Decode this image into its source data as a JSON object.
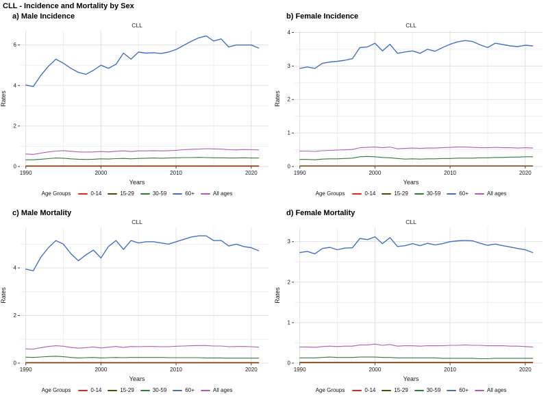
{
  "title": "CLL - Incidence and Mortality by Sex",
  "legend": {
    "title": "Age Groups",
    "items": [
      {
        "label": "0-14",
        "color": "#e0261f"
      },
      {
        "label": "15-29",
        "color": "#4d4d00"
      },
      {
        "label": "30-59",
        "color": "#2f7d33"
      },
      {
        "label": "60+",
        "color": "#4470c4"
      },
      {
        "label": "All ages",
        "color": "#b35ab3"
      }
    ]
  },
  "colors": {
    "grid_major": "#e0e0e0",
    "grid_minor": "#efefef",
    "tick": "#444444",
    "text": "#1a1a1a"
  },
  "chart_data": [
    {
      "type": "line",
      "panel_label": "a) Male Incidence",
      "subtitle": "CLL",
      "xlabel": "Years",
      "ylabel": "Rates",
      "x": [
        1990,
        1991,
        1992,
        1993,
        1994,
        1995,
        1996,
        1997,
        1998,
        1999,
        2000,
        2001,
        2002,
        2003,
        2004,
        2005,
        2006,
        2007,
        2008,
        2009,
        2010,
        2011,
        2012,
        2013,
        2014,
        2015,
        2016,
        2017,
        2018,
        2019,
        2020,
        2021
      ],
      "xlim": [
        1989.3,
        2022.3
      ],
      "ylim": [
        0,
        6.7
      ],
      "xticks": [
        1990,
        2000,
        2010,
        2020
      ],
      "xticks_minor": [
        1995,
        2005,
        2015
      ],
      "yticks": [
        0,
        2,
        4,
        6
      ],
      "yticks_minor": [
        1,
        3,
        5
      ],
      "series": [
        {
          "name": "0-14",
          "color": "#e0261f",
          "width": 1.1,
          "values": [
            0.01,
            0.01,
            0.01,
            0.01,
            0.01,
            0.01,
            0.01,
            0.01,
            0.01,
            0.01,
            0.01,
            0.01,
            0.01,
            0.01,
            0.01,
            0.01,
            0.01,
            0.01,
            0.01,
            0.01,
            0.01,
            0.01,
            0.01,
            0.01,
            0.01,
            0.01,
            0.01,
            0.01,
            0.01,
            0.01,
            0.01,
            0.01
          ]
        },
        {
          "name": "15-29",
          "color": "#4d4d00",
          "width": 1.1,
          "values": [
            0.03,
            0.03,
            0.03,
            0.03,
            0.03,
            0.03,
            0.03,
            0.03,
            0.03,
            0.03,
            0.03,
            0.03,
            0.03,
            0.03,
            0.03,
            0.03,
            0.03,
            0.03,
            0.03,
            0.03,
            0.03,
            0.03,
            0.03,
            0.03,
            0.03,
            0.03,
            0.03,
            0.03,
            0.03,
            0.03,
            0.03,
            0.03
          ]
        },
        {
          "name": "30-59",
          "color": "#2f7d33",
          "width": 1.1,
          "values": [
            0.33,
            0.33,
            0.36,
            0.39,
            0.42,
            0.41,
            0.38,
            0.36,
            0.35,
            0.36,
            0.38,
            0.37,
            0.39,
            0.4,
            0.38,
            0.4,
            0.41,
            0.42,
            0.41,
            0.42,
            0.43,
            0.44,
            0.44,
            0.45,
            0.44,
            0.43,
            0.43,
            0.42,
            0.42,
            0.43,
            0.42,
            0.42
          ]
        },
        {
          "name": "60+",
          "color": "#4470c4",
          "width": 1.4,
          "values": [
            4.02,
            3.95,
            4.5,
            4.95,
            5.3,
            5.1,
            4.85,
            4.65,
            4.55,
            4.75,
            5.0,
            4.85,
            5.05,
            5.6,
            5.3,
            5.65,
            5.6,
            5.62,
            5.58,
            5.65,
            5.78,
            5.98,
            6.18,
            6.35,
            6.45,
            6.2,
            6.3,
            5.9,
            6.0,
            6.0,
            6.0,
            5.85
          ]
        },
        {
          "name": "All ages",
          "color": "#b35ab3",
          "width": 1.1,
          "values": [
            0.62,
            0.6,
            0.66,
            0.72,
            0.76,
            0.78,
            0.75,
            0.72,
            0.71,
            0.72,
            0.74,
            0.72,
            0.75,
            0.77,
            0.74,
            0.77,
            0.77,
            0.78,
            0.77,
            0.78,
            0.8,
            0.83,
            0.85,
            0.86,
            0.88,
            0.87,
            0.86,
            0.83,
            0.82,
            0.84,
            0.83,
            0.82
          ]
        }
      ]
    },
    {
      "type": "line",
      "panel_label": "b) Female Incidence",
      "subtitle": "CLL",
      "xlabel": "Years",
      "ylabel": "Rates",
      "x": [
        1990,
        1991,
        1992,
        1993,
        1994,
        1995,
        1996,
        1997,
        1998,
        1999,
        2000,
        2001,
        2002,
        2003,
        2004,
        2005,
        2006,
        2007,
        2008,
        2009,
        2010,
        2011,
        2012,
        2013,
        2014,
        2015,
        2016,
        2017,
        2018,
        2019,
        2020,
        2021
      ],
      "xlim": [
        1989.3,
        2022.3
      ],
      "ylim": [
        0,
        4.05
      ],
      "xticks": [
        1990,
        2000,
        2010,
        2020
      ],
      "xticks_minor": [
        1995,
        2005,
        2015
      ],
      "yticks": [
        0,
        1,
        2,
        3,
        4
      ],
      "yticks_minor": [
        0.5,
        1.5,
        2.5,
        3.5
      ],
      "series": [
        {
          "name": "0-14",
          "color": "#e0261f",
          "width": 1.1,
          "values": [
            0.01,
            0.01,
            0.01,
            0.01,
            0.01,
            0.01,
            0.01,
            0.01,
            0.01,
            0.01,
            0.01,
            0.01,
            0.01,
            0.01,
            0.01,
            0.01,
            0.01,
            0.01,
            0.01,
            0.01,
            0.01,
            0.01,
            0.01,
            0.01,
            0.01,
            0.01,
            0.01,
            0.01,
            0.01,
            0.01,
            0.01,
            0.01
          ]
        },
        {
          "name": "15-29",
          "color": "#4d4d00",
          "width": 1.1,
          "values": [
            0.02,
            0.02,
            0.02,
            0.02,
            0.02,
            0.02,
            0.02,
            0.02,
            0.02,
            0.02,
            0.02,
            0.02,
            0.02,
            0.02,
            0.02,
            0.02,
            0.02,
            0.02,
            0.02,
            0.02,
            0.02,
            0.02,
            0.02,
            0.02,
            0.02,
            0.02,
            0.02,
            0.02,
            0.02,
            0.02,
            0.02,
            0.02
          ]
        },
        {
          "name": "30-59",
          "color": "#2f7d33",
          "width": 1.1,
          "values": [
            0.21,
            0.21,
            0.2,
            0.22,
            0.23,
            0.23,
            0.24,
            0.25,
            0.29,
            0.3,
            0.29,
            0.27,
            0.26,
            0.24,
            0.22,
            0.23,
            0.22,
            0.23,
            0.23,
            0.24,
            0.24,
            0.25,
            0.25,
            0.25,
            0.26,
            0.26,
            0.27,
            0.27,
            0.28,
            0.28,
            0.29,
            0.29
          ]
        },
        {
          "name": "60+",
          "color": "#4470c4",
          "width": 1.4,
          "values": [
            2.93,
            2.97,
            2.93,
            3.08,
            3.12,
            3.14,
            3.17,
            3.22,
            3.55,
            3.57,
            3.68,
            3.45,
            3.65,
            3.38,
            3.42,
            3.45,
            3.38,
            3.5,
            3.44,
            3.55,
            3.65,
            3.72,
            3.76,
            3.73,
            3.63,
            3.55,
            3.68,
            3.64,
            3.6,
            3.58,
            3.62,
            3.6
          ]
        },
        {
          "name": "All ages",
          "color": "#b35ab3",
          "width": 1.1,
          "values": [
            0.46,
            0.46,
            0.45,
            0.47,
            0.48,
            0.49,
            0.5,
            0.51,
            0.56,
            0.57,
            0.58,
            0.56,
            0.58,
            0.53,
            0.54,
            0.55,
            0.54,
            0.55,
            0.55,
            0.56,
            0.57,
            0.58,
            0.58,
            0.57,
            0.56,
            0.56,
            0.57,
            0.56,
            0.56,
            0.55,
            0.56,
            0.55
          ]
        }
      ]
    },
    {
      "type": "line",
      "panel_label": "c) Male Mortality",
      "subtitle": "CLL",
      "xlabel": "Years",
      "ylabel": "Rates",
      "x": [
        1990,
        1991,
        1992,
        1993,
        1994,
        1995,
        1996,
        1997,
        1998,
        1999,
        2000,
        2001,
        2002,
        2003,
        2004,
        2005,
        2006,
        2007,
        2008,
        2009,
        2010,
        2011,
        2012,
        2013,
        2014,
        2015,
        2016,
        2017,
        2018,
        2019,
        2020,
        2021
      ],
      "xlim": [
        1989.3,
        2022.3
      ],
      "ylim": [
        0,
        5.7
      ],
      "xticks": [
        1990,
        2000,
        2010,
        2020
      ],
      "xticks_minor": [
        1995,
        2005,
        2015
      ],
      "yticks": [
        0,
        2,
        4
      ],
      "yticks_minor": [
        1,
        3,
        5
      ],
      "series": [
        {
          "name": "0-14",
          "color": "#e0261f",
          "width": 1.1,
          "values": [
            0.01,
            0.01,
            0.01,
            0.01,
            0.01,
            0.01,
            0.01,
            0.01,
            0.01,
            0.01,
            0.01,
            0.01,
            0.01,
            0.01,
            0.01,
            0.01,
            0.01,
            0.01,
            0.01,
            0.01,
            0.01,
            0.01,
            0.01,
            0.01,
            0.01,
            0.01,
            0.01,
            0.01,
            0.01,
            0.01,
            0.01,
            0.01
          ]
        },
        {
          "name": "15-29",
          "color": "#4d4d00",
          "width": 1.1,
          "values": [
            0.03,
            0.03,
            0.03,
            0.03,
            0.03,
            0.03,
            0.03,
            0.03,
            0.03,
            0.03,
            0.03,
            0.03,
            0.03,
            0.03,
            0.03,
            0.03,
            0.03,
            0.03,
            0.03,
            0.03,
            0.03,
            0.03,
            0.03,
            0.03,
            0.03,
            0.03,
            0.03,
            0.03,
            0.03,
            0.03,
            0.03,
            0.03
          ]
        },
        {
          "name": "30-59",
          "color": "#2f7d33",
          "width": 1.1,
          "values": [
            0.25,
            0.24,
            0.26,
            0.28,
            0.29,
            0.27,
            0.24,
            0.22,
            0.23,
            0.24,
            0.22,
            0.23,
            0.24,
            0.23,
            0.24,
            0.24,
            0.24,
            0.24,
            0.24,
            0.23,
            0.23,
            0.23,
            0.23,
            0.23,
            0.22,
            0.22,
            0.22,
            0.21,
            0.21,
            0.21,
            0.21,
            0.21
          ]
        },
        {
          "name": "60+",
          "color": "#4470c4",
          "width": 1.4,
          "values": [
            3.95,
            3.88,
            4.45,
            4.85,
            5.15,
            5.0,
            4.6,
            4.3,
            4.55,
            4.75,
            4.42,
            4.9,
            5.15,
            4.78,
            5.15,
            5.05,
            5.1,
            5.1,
            5.05,
            5.0,
            5.1,
            5.2,
            5.3,
            5.35,
            5.35,
            5.15,
            5.15,
            4.92,
            5.0,
            4.9,
            4.85,
            4.72
          ]
        },
        {
          "name": "All ages",
          "color": "#b35ab3",
          "width": 1.1,
          "values": [
            0.6,
            0.59,
            0.65,
            0.7,
            0.73,
            0.71,
            0.66,
            0.63,
            0.65,
            0.68,
            0.64,
            0.67,
            0.7,
            0.66,
            0.7,
            0.69,
            0.7,
            0.7,
            0.69,
            0.69,
            0.71,
            0.72,
            0.73,
            0.74,
            0.74,
            0.72,
            0.72,
            0.69,
            0.7,
            0.7,
            0.69,
            0.67
          ]
        }
      ]
    },
    {
      "type": "line",
      "panel_label": "d) Female Mortality",
      "subtitle": "CLL",
      "xlabel": "Years",
      "ylabel": "Rates",
      "x": [
        1990,
        1991,
        1992,
        1993,
        1994,
        1995,
        1996,
        1997,
        1998,
        1999,
        2000,
        2001,
        2002,
        2003,
        2004,
        2005,
        2006,
        2007,
        2008,
        2009,
        2010,
        2011,
        2012,
        2013,
        2014,
        2015,
        2016,
        2017,
        2018,
        2019,
        2020,
        2021
      ],
      "xlim": [
        1989.3,
        2022.3
      ],
      "ylim": [
        0,
        3.35
      ],
      "xticks": [
        1990,
        2000,
        2010,
        2020
      ],
      "xticks_minor": [
        1995,
        2005,
        2015
      ],
      "yticks": [
        0,
        1,
        2,
        3
      ],
      "yticks_minor": [
        0.5,
        1.5,
        2.5
      ],
      "series": [
        {
          "name": "0-14",
          "color": "#e0261f",
          "width": 1.1,
          "values": [
            0.01,
            0.01,
            0.01,
            0.01,
            0.01,
            0.01,
            0.01,
            0.01,
            0.01,
            0.01,
            0.01,
            0.01,
            0.01,
            0.01,
            0.01,
            0.01,
            0.01,
            0.01,
            0.01,
            0.01,
            0.01,
            0.01,
            0.01,
            0.01,
            0.01,
            0.01,
            0.01,
            0.01,
            0.01,
            0.01,
            0.01,
            0.01
          ]
        },
        {
          "name": "15-29",
          "color": "#4d4d00",
          "width": 1.1,
          "values": [
            0.02,
            0.02,
            0.02,
            0.02,
            0.02,
            0.02,
            0.02,
            0.02,
            0.02,
            0.02,
            0.02,
            0.02,
            0.02,
            0.02,
            0.02,
            0.02,
            0.02,
            0.02,
            0.02,
            0.02,
            0.02,
            0.02,
            0.02,
            0.02,
            0.02,
            0.02,
            0.02,
            0.02,
            0.02,
            0.02,
            0.02,
            0.02
          ]
        },
        {
          "name": "30-59",
          "color": "#2f7d33",
          "width": 1.1,
          "values": [
            0.13,
            0.13,
            0.13,
            0.14,
            0.15,
            0.14,
            0.14,
            0.14,
            0.15,
            0.15,
            0.15,
            0.14,
            0.14,
            0.13,
            0.13,
            0.13,
            0.13,
            0.13,
            0.13,
            0.12,
            0.12,
            0.12,
            0.12,
            0.12,
            0.11,
            0.11,
            0.12,
            0.12,
            0.12,
            0.12,
            0.12,
            0.12
          ]
        },
        {
          "name": "60+",
          "color": "#4470c4",
          "width": 1.4,
          "values": [
            2.73,
            2.76,
            2.7,
            2.83,
            2.86,
            2.8,
            2.84,
            2.85,
            3.08,
            3.05,
            3.12,
            2.95,
            3.1,
            2.88,
            2.9,
            2.95,
            2.9,
            2.96,
            2.92,
            2.95,
            3.0,
            3.02,
            3.03,
            3.02,
            2.96,
            2.91,
            2.94,
            2.9,
            2.87,
            2.83,
            2.8,
            2.73
          ]
        },
        {
          "name": "All ages",
          "color": "#b35ab3",
          "width": 1.1,
          "values": [
            0.4,
            0.4,
            0.39,
            0.41,
            0.42,
            0.41,
            0.42,
            0.42,
            0.45,
            0.45,
            0.47,
            0.44,
            0.46,
            0.42,
            0.43,
            0.43,
            0.42,
            0.43,
            0.43,
            0.43,
            0.44,
            0.44,
            0.45,
            0.44,
            0.44,
            0.43,
            0.43,
            0.43,
            0.42,
            0.42,
            0.41,
            0.4
          ]
        }
      ]
    }
  ]
}
